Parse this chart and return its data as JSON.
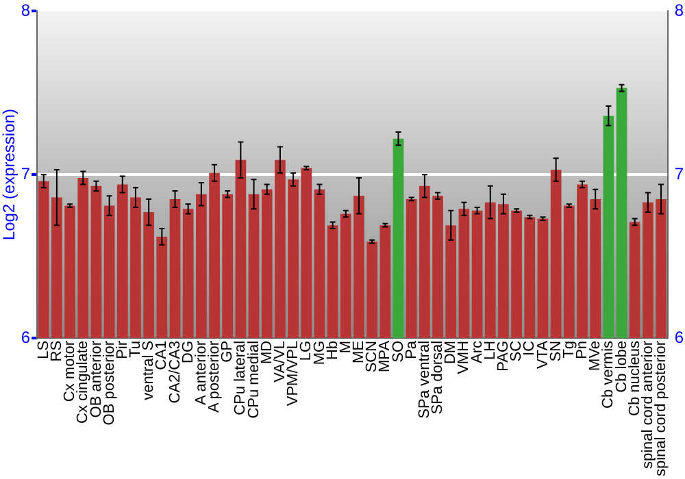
{
  "chart_data": {
    "type": "bar",
    "ylabel": "Log2 (expression)",
    "categories": [
      "LS",
      "RS",
      "Cx motor",
      "Cx cingulate",
      "OB anterior",
      "OB posterior",
      "Pir",
      "Tu",
      "ventral S",
      "CA1",
      "CA2/CA3",
      "DG",
      "A anterior",
      "A posterior",
      "GP",
      "CPu lateral",
      "CPu medial",
      "MD",
      "VA/VL",
      "VPM/VPL",
      "LG",
      "MG",
      "Hb",
      "M",
      "ME",
      "SCN",
      "MPA",
      "SO",
      "Pa",
      "SPa ventral",
      "SPa dorsal",
      "DM",
      "VMH",
      "Arc",
      "LH",
      "PAG",
      "SC",
      "IC",
      "VTA",
      "SN",
      "Tg",
      "Pn",
      "MVe",
      "Cb vermis",
      "Cb lobe",
      "Cb nucleus",
      "spinal cord anterior",
      "spinal cord posterior"
    ],
    "values": [
      6.96,
      6.86,
      6.81,
      6.98,
      6.93,
      6.81,
      6.94,
      6.86,
      6.77,
      6.62,
      6.85,
      6.79,
      6.88,
      7.01,
      6.88,
      7.09,
      6.88,
      6.91,
      7.09,
      6.97,
      7.04,
      6.91,
      6.69,
      6.76,
      6.87,
      6.59,
      6.69,
      7.22,
      6.85,
      6.93,
      6.87,
      6.69,
      6.79,
      6.78,
      6.83,
      6.82,
      6.78,
      6.74,
      6.73,
      7.03,
      6.81,
      6.94,
      6.85,
      7.36,
      7.53,
      6.71,
      6.83,
      6.85
    ],
    "errors": [
      0.04,
      0.17,
      0.01,
      0.04,
      0.03,
      0.06,
      0.05,
      0.06,
      0.08,
      0.05,
      0.05,
      0.03,
      0.07,
      0.05,
      0.02,
      0.11,
      0.09,
      0.03,
      0.08,
      0.04,
      0.01,
      0.03,
      0.02,
      0.02,
      0.11,
      0.01,
      0.01,
      0.04,
      0.01,
      0.07,
      0.02,
      0.09,
      0.04,
      0.02,
      0.1,
      0.06,
      0.01,
      0.01,
      0.01,
      0.07,
      0.01,
      0.02,
      0.06,
      0.06,
      0.02,
      0.02,
      0.06,
      0.09
    ],
    "colors": [
      "#b83535",
      "#b83535",
      "#b83535",
      "#b83535",
      "#b83535",
      "#b83535",
      "#b83535",
      "#b83535",
      "#b83535",
      "#b83535",
      "#b83535",
      "#b83535",
      "#b83535",
      "#b83535",
      "#b83535",
      "#b83535",
      "#b83535",
      "#b83535",
      "#b83535",
      "#b83535",
      "#b83535",
      "#b83535",
      "#b83535",
      "#b83535",
      "#b83535",
      "#b83535",
      "#b83535",
      "#3aa83a",
      "#b83535",
      "#b83535",
      "#b83535",
      "#b83535",
      "#b83535",
      "#b83535",
      "#b83535",
      "#b83535",
      "#b83535",
      "#b83535",
      "#b83535",
      "#b83535",
      "#b83535",
      "#b83535",
      "#b83535",
      "#3aa83a",
      "#3aa83a",
      "#b83535",
      "#b83535",
      "#b83535"
    ],
    "ylim": [
      6,
      8
    ],
    "yticks": [
      6,
      7,
      8
    ],
    "y2lim": [
      6,
      8
    ],
    "y2ticks": [
      6,
      7,
      8
    ],
    "grid": "y",
    "legend": false
  }
}
